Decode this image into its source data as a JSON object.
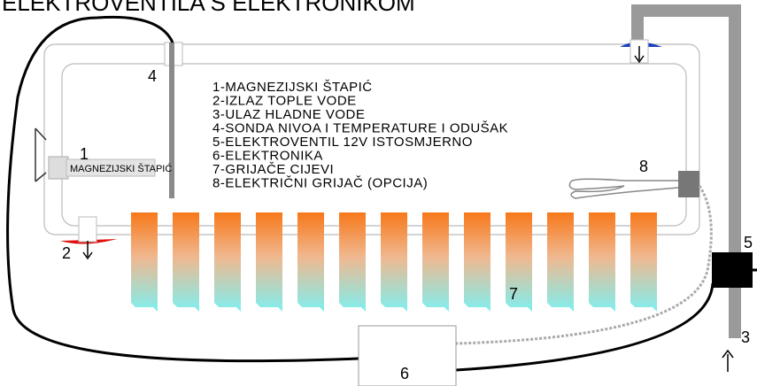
{
  "title": "ELEKTROVENTILA S ELEKTRONIKOM",
  "legend": [
    "1-MAGNEZIJSKI ŠTAPIĆ",
    "2-IZLAZ TOPLE VODE",
    "3-ULAZ HLADNE VODE",
    "4-SONDA NIVOA I TEMPERATURE I ODUŠAK",
    "5-ELEKTROVENTIL 12V ISTOSMJERNO",
    "6-ELEKTRONIKA",
    "7-GRIJAČE CIJEVI",
    "8-ELEKTRIČNI GRIJAČ (OPCIJA)"
  ],
  "labels": {
    "rod": "MAGNEZIJSKI ŠTAPIĆ",
    "n1": "1",
    "n2": "2",
    "n3": "3",
    "n4": "4",
    "n5": "5",
    "n6": "6",
    "n7": "7",
    "n8": "8"
  }
}
